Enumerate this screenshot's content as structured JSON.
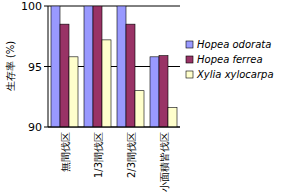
{
  "chart_data": {
    "type": "bar",
    "y_label": "生存率 (%)",
    "categories": [
      "無間伐区",
      "1/3間伐区",
      "2/3間伐区",
      "小面積皆伐区"
    ],
    "series": [
      {
        "name": "Hopea odorata",
        "color": "#9999ff",
        "values": [
          100,
          100,
          100,
          95.8
        ]
      },
      {
        "name": "Hopea ferrea",
        "color": "#993366",
        "values": [
          98.5,
          100,
          98.5,
          95.9
        ]
      },
      {
        "name": "Xylia xylocarpa",
        "color": "#ffffcc",
        "values": [
          95.8,
          97.2,
          93,
          91.6
        ]
      }
    ],
    "ylim": [
      90,
      100
    ],
    "yticks": [
      90,
      95,
      100
    ],
    "grid": true,
    "legend": "right"
  }
}
